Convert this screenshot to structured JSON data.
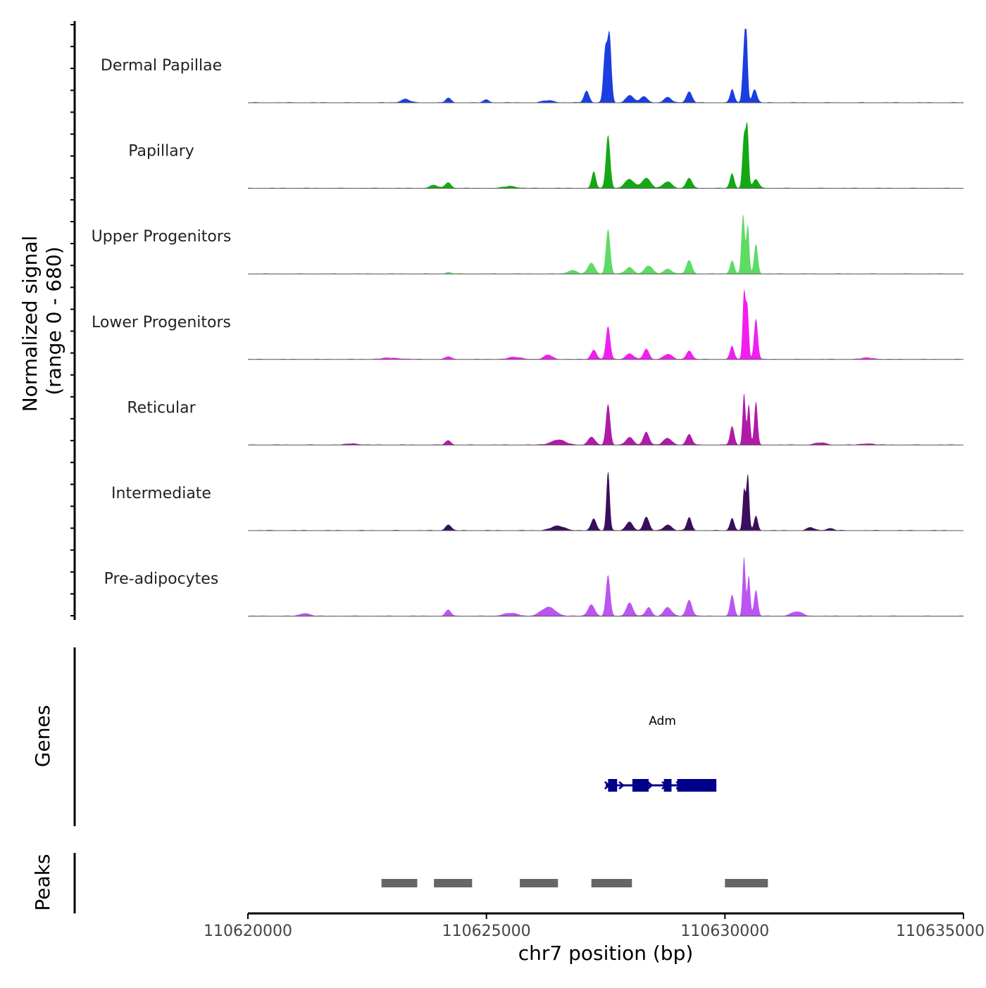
{
  "chart_data": {
    "type": "area",
    "title": "",
    "chromosome": "chr7",
    "xlabel": "chr7 position (bp)",
    "xlim": [
      110620000,
      110635000
    ],
    "x_ticks": [
      110620000,
      110625000,
      110630000,
      110635000
    ],
    "x_tick_labels": [
      "110620000",
      "110625000",
      "110630000",
      "110635000"
    ],
    "coverage_panel": {
      "ylabel_line1": "Normalized signal",
      "ylabel_line2": "(range 0 - 680)",
      "yrange": [
        0,
        680
      ],
      "series": [
        {
          "name": "Dermal Papillae",
          "color": "#1a3ee0",
          "peaks": [
            [
              110627100,
              16,
              55
            ],
            [
              110627490,
              70,
              40
            ],
            [
              110627580,
              90,
              40
            ],
            [
              110628000,
              10,
              80
            ],
            [
              110628300,
              8,
              80
            ],
            [
              110628800,
              7,
              80
            ],
            [
              110629250,
              15,
              60
            ],
            [
              110630150,
              18,
              45
            ],
            [
              110630400,
              65,
              35
            ],
            [
              110630450,
              80,
              30
            ],
            [
              110630620,
              18,
              50
            ],
            [
              110623300,
              5,
              90
            ],
            [
              110624200,
              6,
              60
            ],
            [
              110625000,
              4,
              60
            ],
            [
              110626300,
              3,
              120
            ]
          ]
        },
        {
          "name": "Papillary",
          "color": "#14a814",
          "peaks": [
            [
              110627250,
              22,
              45
            ],
            [
              110627550,
              72,
              45
            ],
            [
              110628000,
              12,
              100
            ],
            [
              110628350,
              14,
              90
            ],
            [
              110628800,
              9,
              90
            ],
            [
              110629250,
              14,
              60
            ],
            [
              110630150,
              20,
              45
            ],
            [
              110630400,
              70,
              35
            ],
            [
              110630470,
              78,
              30
            ],
            [
              110630650,
              12,
              60
            ],
            [
              110623900,
              4,
              90
            ],
            [
              110624200,
              8,
              60
            ],
            [
              110625500,
              3,
              120
            ]
          ]
        },
        {
          "name": "Upper Progenitors",
          "color": "#5ddb65",
          "peaks": [
            [
              110626800,
              5,
              90
            ],
            [
              110627200,
              15,
              70
            ],
            [
              110627550,
              60,
              45
            ],
            [
              110628000,
              9,
              80
            ],
            [
              110628400,
              11,
              80
            ],
            [
              110628800,
              7,
              80
            ],
            [
              110629250,
              18,
              60
            ],
            [
              110630150,
              18,
              45
            ],
            [
              110630380,
              80,
              35
            ],
            [
              110630480,
              65,
              30
            ],
            [
              110630650,
              40,
              40
            ],
            [
              110624200,
              2,
              60
            ]
          ]
        },
        {
          "name": "Lower Progenitors",
          "color": "#f21ef0",
          "peaks": [
            [
              110626300,
              6,
              90
            ],
            [
              110627250,
              13,
              60
            ],
            [
              110627550,
              45,
              45
            ],
            [
              110628000,
              8,
              80
            ],
            [
              110628350,
              14,
              60
            ],
            [
              110628800,
              7,
              90
            ],
            [
              110629250,
              12,
              60
            ],
            [
              110630150,
              18,
              45
            ],
            [
              110630400,
              90,
              30
            ],
            [
              110630470,
              70,
              30
            ],
            [
              110630650,
              55,
              40
            ],
            [
              110624200,
              4,
              60
            ],
            [
              110625600,
              3,
              150
            ],
            [
              110623000,
              2,
              200
            ],
            [
              110633000,
              2,
              150
            ]
          ]
        },
        {
          "name": "Reticular",
          "color": "#b01aa8",
          "peaks": [
            [
              110626500,
              7,
              150
            ],
            [
              110627200,
              11,
              70
            ],
            [
              110627550,
              55,
              45
            ],
            [
              110628000,
              10,
              80
            ],
            [
              110628350,
              18,
              60
            ],
            [
              110628800,
              9,
              90
            ],
            [
              110629250,
              14,
              60
            ],
            [
              110630150,
              25,
              45
            ],
            [
              110630400,
              70,
              30
            ],
            [
              110630500,
              55,
              30
            ],
            [
              110630650,
              58,
              35
            ],
            [
              110624200,
              6,
              60
            ],
            [
              110632000,
              3,
              120
            ],
            [
              110633000,
              2,
              120
            ],
            [
              110622200,
              2,
              120
            ]
          ]
        },
        {
          "name": "Intermediate",
          "color": "#3a0e5c",
          "peaks": [
            [
              110626500,
              6,
              150
            ],
            [
              110627250,
              16,
              55
            ],
            [
              110627550,
              80,
              35
            ],
            [
              110628000,
              12,
              70
            ],
            [
              110628350,
              18,
              60
            ],
            [
              110628800,
              8,
              80
            ],
            [
              110629250,
              18,
              50
            ],
            [
              110630150,
              17,
              45
            ],
            [
              110630400,
              55,
              30
            ],
            [
              110630480,
              75,
              30
            ],
            [
              110630650,
              20,
              40
            ],
            [
              110624200,
              8,
              60
            ],
            [
              110631800,
              4,
              80
            ],
            [
              110632200,
              3,
              80
            ]
          ]
        },
        {
          "name": "Pre-adipocytes",
          "color": "#bb55f0",
          "peaks": [
            [
              110626300,
              12,
              150
            ],
            [
              110627200,
              16,
              70
            ],
            [
              110627550,
              55,
              45
            ],
            [
              110628000,
              18,
              70
            ],
            [
              110628400,
              12,
              60
            ],
            [
              110628800,
              12,
              80
            ],
            [
              110629250,
              22,
              60
            ],
            [
              110630150,
              28,
              45
            ],
            [
              110630400,
              80,
              30
            ],
            [
              110630500,
              55,
              30
            ],
            [
              110630650,
              35,
              40
            ],
            [
              110624200,
              8,
              60
            ],
            [
              110621200,
              4,
              100
            ],
            [
              110625500,
              4,
              150
            ],
            [
              110631500,
              6,
              120
            ]
          ]
        }
      ]
    },
    "genes_panel": {
      "ylabel": "Genes",
      "genes": [
        {
          "name": "Adm",
          "strand": "+",
          "start": 110627500,
          "end": 110629820,
          "color": "#00008b",
          "exons": [
            [
              110627550,
              110627740
            ],
            [
              110628060,
              110628400
            ],
            [
              110628720,
              110628880
            ],
            [
              110629000,
              110629820
            ]
          ]
        }
      ]
    },
    "peaks_panel": {
      "ylabel": "Peaks",
      "color": "#666666",
      "peaks": [
        [
          110622800,
          110623550
        ],
        [
          110623900,
          110624700
        ],
        [
          110625700,
          110626500
        ],
        [
          110627200,
          110628050
        ],
        [
          110630000,
          110630900
        ]
      ]
    }
  }
}
